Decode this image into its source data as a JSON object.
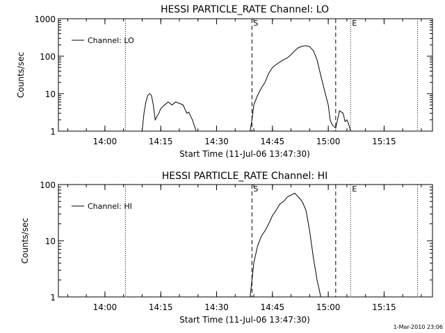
{
  "footer": "1-Mar-2010 23:06",
  "chart_data": [
    {
      "type": "line",
      "title": "HESSI PARTICLE_RATE Channel: LO",
      "xlabel": "Start Time (11-Jul-06 13:47:30)",
      "ylabel": "Counts/sec",
      "yscale": "log",
      "xlim": [
        "13:47:30",
        "15:28:00"
      ],
      "ylim": [
        1,
        1000
      ],
      "xticks": [
        "14:00",
        "14:15",
        "14:30",
        "14:45",
        "15:00",
        "15:15"
      ],
      "yticks": [
        "1",
        "10",
        "100",
        "1000"
      ],
      "legend_position": "top-left",
      "vlines": [
        {
          "x": "14:05:30",
          "style": "dotted",
          "label": ""
        },
        {
          "x": "14:39:30",
          "style": "dashed",
          "label": "S"
        },
        {
          "x": "15:02:00",
          "style": "dashed",
          "label": ""
        },
        {
          "x": "15:06:00",
          "style": "dotted",
          "label": "E"
        },
        {
          "x": "15:24:00",
          "style": "dotted",
          "label": ""
        }
      ],
      "series": [
        {
          "name": "Channel: LO",
          "segments": [
            [
              [
                "14:10:00",
                1
              ],
              [
                "14:10:30",
                3
              ],
              [
                "14:11:00",
                6
              ],
              [
                "14:11:30",
                9
              ],
              [
                "14:12:00",
                10
              ],
              [
                "14:12:30",
                9
              ],
              [
                "14:13:00",
                5
              ],
              [
                "14:13:30",
                2
              ],
              [
                "14:14:00",
                2.5
              ],
              [
                "14:14:30",
                3
              ],
              [
                "14:15:00",
                4
              ],
              [
                "14:15:30",
                4.5
              ],
              [
                "14:16:00",
                5
              ],
              [
                "14:17:00",
                6
              ],
              [
                "14:18:00",
                5
              ],
              [
                "14:19:00",
                6
              ],
              [
                "14:20:00",
                5.5
              ],
              [
                "14:21:00",
                5
              ],
              [
                "14:22:00",
                3
              ],
              [
                "14:22:30",
                3.2
              ],
              [
                "14:23:30",
                2
              ],
              [
                "14:24:30",
                1
              ]
            ],
            [
              [
                "14:39:00",
                1
              ],
              [
                "14:39:30",
                2
              ],
              [
                "14:40:00",
                5
              ],
              [
                "14:41:00",
                9
              ],
              [
                "14:42:00",
                14
              ],
              [
                "14:43:00",
                20
              ],
              [
                "14:44:00",
                35
              ],
              [
                "14:45:00",
                50
              ],
              [
                "14:46:00",
                60
              ],
              [
                "14:47:00",
                70
              ],
              [
                "14:48:00",
                80
              ],
              [
                "14:49:00",
                90
              ],
              [
                "14:50:00",
                110
              ],
              [
                "14:51:00",
                140
              ],
              [
                "14:52:00",
                170
              ],
              [
                "14:53:00",
                185
              ],
              [
                "14:54:00",
                190
              ],
              [
                "14:55:00",
                180
              ],
              [
                "14:56:00",
                140
              ],
              [
                "14:57:00",
                80
              ],
              [
                "14:58:00",
                30
              ],
              [
                "14:59:00",
                12
              ],
              [
                "15:00:00",
                5
              ],
              [
                "15:00:30",
                2
              ],
              [
                "15:01:00",
                1.5
              ],
              [
                "15:02:00",
                1.2
              ],
              [
                "15:02:30",
                2
              ],
              [
                "15:03:00",
                3.5
              ],
              [
                "15:04:00",
                3
              ],
              [
                "15:04:30",
                1.8
              ],
              [
                "15:05:00",
                2
              ],
              [
                "15:05:30",
                1.5
              ],
              [
                "15:06:00",
                1
              ]
            ]
          ]
        }
      ]
    },
    {
      "type": "line",
      "title": "HESSI PARTICLE_RATE Channel: HI",
      "xlabel": "Start Time (11-Jul-06 13:47:30)",
      "ylabel": "Counts/sec",
      "yscale": "log",
      "xlim": [
        "13:47:30",
        "15:28:00"
      ],
      "ylim": [
        1,
        100
      ],
      "xticks": [
        "14:00",
        "14:15",
        "14:30",
        "14:45",
        "15:00",
        "15:15"
      ],
      "yticks": [
        "1",
        "10",
        "100"
      ],
      "legend_position": "top-left",
      "vlines": [
        {
          "x": "14:05:30",
          "style": "dotted",
          "label": ""
        },
        {
          "x": "14:39:30",
          "style": "dashed",
          "label": "S"
        },
        {
          "x": "15:02:00",
          "style": "dashed",
          "label": ""
        },
        {
          "x": "15:06:00",
          "style": "dotted",
          "label": "E"
        },
        {
          "x": "15:24:00",
          "style": "dotted",
          "label": ""
        }
      ],
      "series": [
        {
          "name": "Channel: HI",
          "segments": [
            [
              [
                "14:39:00",
                1
              ],
              [
                "14:39:30",
                2
              ],
              [
                "14:40:00",
                4
              ],
              [
                "14:41:00",
                8
              ],
              [
                "14:42:00",
                12
              ],
              [
                "14:43:00",
                15
              ],
              [
                "14:44:00",
                20
              ],
              [
                "14:45:00",
                28
              ],
              [
                "14:46:00",
                35
              ],
              [
                "14:47:00",
                45
              ],
              [
                "14:48:00",
                50
              ],
              [
                "14:49:00",
                60
              ],
              [
                "14:50:00",
                65
              ],
              [
                "14:51:00",
                70
              ],
              [
                "14:52:00",
                60
              ],
              [
                "14:53:00",
                50
              ],
              [
                "14:54:00",
                35
              ],
              [
                "14:55:00",
                15
              ],
              [
                "14:56:00",
                5
              ],
              [
                "14:57:00",
                2
              ],
              [
                "14:58:00",
                1
              ]
            ]
          ]
        }
      ]
    }
  ]
}
